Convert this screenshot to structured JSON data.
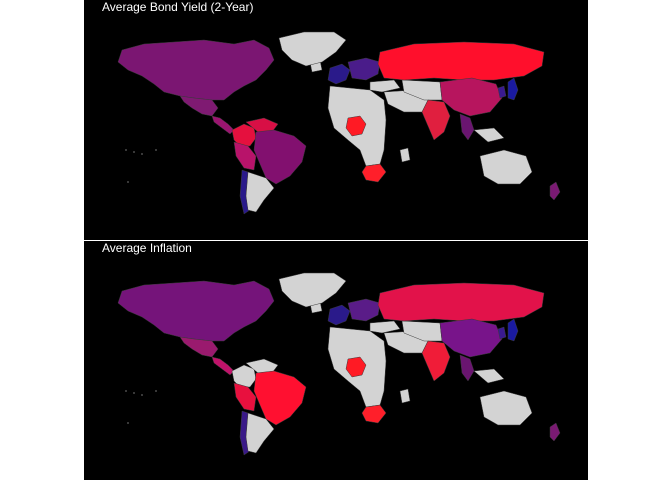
{
  "colors": {
    "background": "#000000",
    "no_data": "#d3d3d3",
    "border": "#3a3a3a",
    "title_text": "#ffffff"
  },
  "maps": [
    {
      "title": "Average Bond Yield (2-Year)",
      "countries": {
        "north_america": "#7b1672",
        "mexico": "#7f1a72",
        "central_america": "#9a1570",
        "greenland": "#d3d3d3",
        "brazil": "#82106f",
        "colombia": "#e5103e",
        "venezuela": "#d80f45",
        "peru": "#b8136a",
        "chile": "#2a1a8a",
        "argentina": "#d3d3d3",
        "russia": "#ff0f2c",
        "europe_west": "#2a1a8a",
        "europe_central": "#4a1c8a",
        "turkey": "#d3d3d3",
        "china": "#b7155e",
        "india": "#e01f3f",
        "nigeria": "#ff1a24",
        "south_africa": "#ff1f2a",
        "australia": "#d3d3d3",
        "japan": "#1a1aa0",
        "korea": "#3a1a90",
        "se_asia": "#6a1570",
        "new_zealand": "#7a1a72"
      }
    },
    {
      "title": "Average Inflation",
      "countries": {
        "north_america": "#75147a",
        "mexico": "#9a1a6e",
        "central_america": "#c0136a",
        "greenland": "#d3d3d3",
        "brazil": "#ff1030",
        "colombia": "#d3d3d3",
        "venezuela": "#d3d3d3",
        "peru": "#e8103e",
        "chile": "#3a1a88",
        "argentina": "#d3d3d3",
        "russia": "#e2124a",
        "europe_west": "#2a1a8a",
        "europe_central": "#5a1c88",
        "turkey": "#d3d3d3",
        "china": "#78148a",
        "india": "#f01c38",
        "nigeria": "#ff1a24",
        "south_africa": "#ff1f2a",
        "australia": "#d3d3d3",
        "japan": "#1a1aa0",
        "korea": "#3a1a90",
        "se_asia": "#6a1570",
        "new_zealand": "#7a1a72"
      }
    }
  ]
}
